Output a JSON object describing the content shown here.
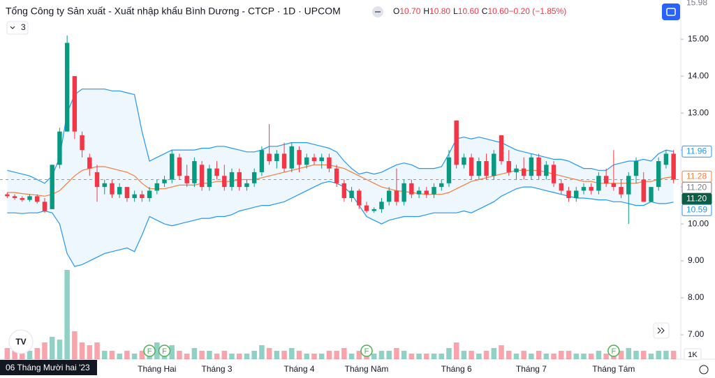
{
  "chart_data": {
    "type": "candlestick",
    "title": "Tổng Công ty Sản xuất - Xuất nhập khẩu Bình Dương - CTCP · 1D · UPCOM",
    "ohlc_legend": [
      {
        "key": "O",
        "value": "10.70"
      },
      {
        "key": "H",
        "value": "10.80"
      },
      {
        "key": "L",
        "value": "10.60"
      },
      {
        "key": "C",
        "value": "10.60"
      },
      {
        "key": "",
        "value": "−0.20 (−1.85%)"
      }
    ],
    "indicator_count": "3",
    "crosshair_date": "06 Tháng Mười hai '23",
    "crosshair_price": 11.2,
    "volume_unit": "1K",
    "up_color": "#089981",
    "down_color": "#f23645",
    "ylim": [
      6.34,
      16.06
    ],
    "yticks": [
      {
        "value": 7,
        "label": "7.00"
      },
      {
        "value": 8,
        "label": "8.00"
      },
      {
        "value": 9,
        "label": "9.00"
      },
      {
        "value": 10,
        "label": "10.00"
      },
      {
        "value": 11,
        "label": "11.00"
      },
      {
        "value": 12,
        "label": "12.00"
      },
      {
        "value": 13,
        "label": "13.00"
      },
      {
        "value": 14,
        "label": "14.00"
      },
      {
        "value": 15,
        "label": "15.00"
      }
    ],
    "price_labels": [
      {
        "value": 15.98,
        "label": "15.98",
        "color": "#787b86",
        "style": "plain"
      },
      {
        "value": 11.96,
        "label": "11.96",
        "color": "#2196f3",
        "style": "outline"
      },
      {
        "value": 11.28,
        "label": "11.28",
        "color": "#f57c3b",
        "style": "outline"
      },
      {
        "value": 11.2,
        "label": "11.20",
        "color": "#787b86",
        "style": "outline"
      },
      {
        "value": 11.2,
        "label": "11.20",
        "color": "#0b5d44",
        "style": "solid"
      },
      {
        "value": 10.59,
        "label": "10.59",
        "color": "#2196f3",
        "style": "outline"
      }
    ],
    "categories": [
      null,
      null,
      null,
      null,
      null,
      null,
      null,
      null,
      null,
      null,
      null,
      null,
      null,
      null,
      null,
      null,
      null,
      null,
      null,
      null,
      "Tháng Hai",
      null,
      null,
      null,
      null,
      null,
      null,
      null,
      "Tháng 3",
      null,
      null,
      null,
      null,
      null,
      null,
      null,
      null,
      null,
      null,
      "Tháng 4",
      null,
      null,
      null,
      null,
      null,
      null,
      null,
      null,
      "Tháng Năm",
      null,
      null,
      null,
      null,
      null,
      null,
      null,
      null,
      null,
      null,
      null,
      "Tháng 6",
      null,
      null,
      null,
      null,
      null,
      null,
      null,
      null,
      null,
      "Tháng 7",
      null,
      null,
      null,
      null,
      null,
      null,
      null,
      null,
      null,
      null,
      "Tháng Tám",
      null,
      null,
      null,
      null,
      null,
      null,
      null,
      null
    ],
    "events": [
      null,
      null,
      null,
      null,
      null,
      null,
      null,
      null,
      null,
      null,
      null,
      null,
      null,
      null,
      null,
      null,
      null,
      null,
      null,
      "F",
      null,
      "F",
      null,
      null,
      null,
      null,
      null,
      null,
      null,
      null,
      null,
      null,
      null,
      null,
      null,
      null,
      null,
      null,
      null,
      null,
      null,
      null,
      null,
      null,
      null,
      null,
      null,
      null,
      "F",
      null,
      null,
      null,
      null,
      null,
      null,
      null,
      null,
      null,
      null,
      null,
      null,
      null,
      null,
      null,
      null,
      null,
      null,
      null,
      null,
      null,
      null,
      null,
      null,
      null,
      null,
      null,
      null,
      null,
      null,
      null,
      null,
      "F",
      null,
      null,
      null,
      null,
      null,
      null,
      null,
      null
    ],
    "ohlc": [
      [
        10.8,
        10.85,
        10.7,
        10.75
      ],
      [
        10.75,
        10.8,
        10.65,
        10.7
      ],
      [
        10.7,
        10.75,
        10.6,
        10.65
      ],
      [
        10.65,
        10.8,
        10.6,
        10.75
      ],
      [
        10.75,
        10.8,
        10.55,
        10.6
      ],
      [
        10.6,
        10.7,
        10.3,
        10.35
      ],
      [
        10.4,
        11.6,
        10.4,
        11.6
      ],
      [
        11.6,
        12.6,
        11.5,
        12.5
      ],
      [
        12.5,
        15.1,
        12.5,
        14.9
      ],
      [
        14.0,
        14.0,
        12.3,
        12.5
      ],
      [
        12.4,
        12.5,
        11.8,
        12.0
      ],
      [
        11.8,
        11.9,
        11.3,
        11.5
      ],
      [
        11.4,
        11.6,
        10.6,
        11.0
      ],
      [
        11.0,
        11.2,
        10.8,
        11.1
      ],
      [
        11.1,
        11.2,
        10.7,
        10.8
      ],
      [
        10.8,
        11.1,
        10.7,
        11.0
      ],
      [
        11.0,
        11.0,
        10.6,
        10.7
      ],
      [
        10.7,
        10.9,
        10.6,
        10.8
      ],
      [
        10.8,
        10.9,
        10.6,
        10.7
      ],
      [
        10.7,
        11.0,
        10.6,
        10.9
      ],
      [
        10.9,
        11.2,
        10.8,
        11.1
      ],
      [
        11.1,
        11.3,
        11.0,
        11.2
      ],
      [
        11.2,
        12.0,
        11.1,
        11.9
      ],
      [
        11.8,
        11.9,
        11.2,
        11.3
      ],
      [
        11.3,
        11.6,
        11.0,
        11.1
      ],
      [
        11.1,
        11.8,
        11.0,
        11.7
      ],
      [
        11.6,
        11.7,
        10.9,
        11.0
      ],
      [
        11.0,
        11.6,
        10.9,
        11.5
      ],
      [
        11.5,
        11.7,
        11.2,
        11.3
      ],
      [
        11.3,
        11.6,
        10.9,
        11.0
      ],
      [
        11.0,
        11.5,
        10.9,
        11.4
      ],
      [
        11.4,
        11.5,
        10.9,
        11.0
      ],
      [
        11.0,
        11.2,
        10.9,
        11.1
      ],
      [
        11.1,
        11.5,
        11.0,
        11.4
      ],
      [
        11.4,
        12.1,
        11.3,
        12.0
      ],
      [
        11.9,
        12.7,
        11.6,
        11.7
      ],
      [
        11.7,
        12.0,
        11.5,
        11.9
      ],
      [
        11.9,
        12.2,
        11.4,
        11.5
      ],
      [
        11.5,
        12.2,
        11.4,
        12.1
      ],
      [
        12.0,
        12.1,
        11.4,
        11.6
      ],
      [
        11.6,
        11.9,
        11.5,
        11.8
      ],
      [
        11.8,
        11.9,
        11.6,
        11.7
      ],
      [
        11.7,
        11.9,
        11.5,
        11.8
      ],
      [
        11.8,
        11.9,
        11.4,
        11.5
      ],
      [
        11.5,
        11.6,
        11.0,
        11.1
      ],
      [
        11.1,
        11.2,
        10.6,
        10.7
      ],
      [
        10.7,
        11.0,
        10.6,
        10.9
      ],
      [
        10.9,
        10.95,
        10.4,
        10.5
      ],
      [
        10.5,
        10.6,
        10.3,
        10.35
      ],
      [
        10.35,
        10.45,
        10.3,
        10.4
      ],
      [
        10.4,
        10.7,
        10.3,
        10.6
      ],
      [
        10.6,
        11.0,
        10.5,
        10.9
      ],
      [
        10.9,
        11.5,
        10.5,
        10.6
      ],
      [
        10.6,
        11.2,
        10.5,
        11.1
      ],
      [
        11.1,
        11.2,
        10.7,
        10.8
      ],
      [
        10.8,
        11.0,
        10.7,
        10.9
      ],
      [
        10.9,
        11.0,
        10.7,
        10.8
      ],
      [
        10.8,
        11.1,
        10.7,
        11.0
      ],
      [
        11.0,
        11.2,
        10.9,
        11.1
      ],
      [
        11.1,
        12.0,
        11.0,
        11.8
      ],
      [
        12.8,
        12.8,
        11.5,
        11.6
      ],
      [
        11.6,
        11.9,
        11.5,
        11.8
      ],
      [
        11.8,
        11.9,
        11.2,
        11.3
      ],
      [
        11.3,
        11.8,
        11.2,
        11.7
      ],
      [
        11.7,
        11.9,
        11.2,
        11.3
      ],
      [
        11.3,
        12.0,
        11.2,
        11.9
      ],
      [
        12.4,
        12.4,
        11.6,
        11.7
      ],
      [
        11.7,
        12.0,
        11.3,
        11.4
      ],
      [
        11.4,
        11.6,
        11.2,
        11.5
      ],
      [
        11.5,
        11.8,
        11.2,
        11.3
      ],
      [
        11.3,
        11.9,
        11.2,
        11.8
      ],
      [
        11.8,
        11.9,
        11.2,
        11.3
      ],
      [
        11.3,
        11.7,
        11.2,
        11.6
      ],
      [
        11.6,
        11.7,
        11.0,
        11.1
      ],
      [
        11.1,
        11.2,
        10.8,
        10.9
      ],
      [
        10.9,
        11.0,
        10.6,
        10.7
      ],
      [
        10.7,
        11.0,
        10.6,
        10.9
      ],
      [
        10.9,
        11.1,
        10.8,
        11.0
      ],
      [
        11.0,
        11.1,
        10.8,
        10.9
      ],
      [
        10.9,
        11.4,
        10.8,
        11.3
      ],
      [
        11.3,
        11.5,
        11.0,
        11.1
      ],
      [
        11.1,
        12.0,
        10.9,
        11.0
      ],
      [
        11.0,
        11.2,
        10.7,
        10.8
      ],
      [
        10.8,
        11.4,
        10.0,
        11.3
      ],
      [
        11.3,
        11.8,
        11.1,
        11.7
      ],
      [
        11.2,
        11.4,
        10.6,
        10.6
      ],
      [
        10.6,
        11.0,
        10.6,
        11.0
      ],
      [
        11.0,
        11.8,
        10.9,
        11.7
      ],
      [
        11.6,
        12.0,
        11.5,
        11.9
      ],
      [
        11.9,
        12.0,
        11.1,
        11.2
      ]
    ],
    "volume_lim": [
      0,
      20
    ],
    "volume": [
      2,
      1.5,
      1,
      1.5,
      2,
      3,
      4,
      3.5,
      16,
      5,
      3,
      2.5,
      3,
      1.5,
      1.5,
      1,
      1.5,
      1,
      1.5,
      2,
      3,
      2,
      2.5,
      1.5,
      1,
      2,
      1.5,
      1.5,
      1,
      1.5,
      1,
      1,
      1,
      1.5,
      2.5,
      2,
      1.5,
      1.5,
      2,
      1.5,
      1,
      1,
      1,
      1.5,
      1.5,
      2,
      1,
      1.5,
      2,
      1,
      1.5,
      1.5,
      2,
      1.5,
      1,
      1,
      1,
      1,
      1,
      2,
      3,
      1.5,
      1.5,
      1,
      1.5,
      2,
      2.5,
      1.5,
      1,
      1.5,
      1,
      1.5,
      1,
      1,
      1.5,
      1.5,
      1,
      1,
      1,
      1.5,
      1,
      2.5,
      1.5,
      2,
      1.5,
      1.5,
      1,
      1.5,
      1.5,
      1.5
    ],
    "bollinger": {
      "upper_color": "#2196f3",
      "middle_color": "#f57c3b",
      "fill": "rgba(33,150,243,0.08)",
      "upper": [
        11.45,
        11.4,
        11.35,
        11.3,
        11.2,
        11.1,
        11.3,
        11.8,
        13.0,
        13.5,
        13.65,
        13.65,
        13.65,
        13.65,
        13.6,
        13.6,
        13.55,
        13.5,
        12.5,
        11.7,
        11.8,
        11.9,
        12.0,
        12.0,
        12.0,
        12.0,
        12.05,
        12.05,
        12.1,
        12.1,
        12.05,
        12.0,
        11.95,
        11.95,
        12.0,
        12.1,
        12.1,
        12.15,
        12.2,
        12.2,
        12.2,
        12.15,
        12.1,
        12.05,
        11.95,
        11.7,
        11.5,
        11.35,
        11.4,
        11.35,
        11.4,
        11.5,
        11.6,
        11.65,
        11.6,
        11.5,
        11.5,
        11.5,
        11.55,
        11.9,
        12.3,
        12.35,
        12.3,
        12.35,
        12.3,
        12.25,
        12.2,
        12.1,
        12.0,
        11.95,
        11.9,
        11.85,
        11.8,
        11.75,
        11.75,
        11.7,
        11.6,
        11.5,
        11.5,
        11.45,
        11.45,
        11.6,
        11.65,
        11.7,
        11.7,
        11.75,
        11.7,
        11.9,
        12.0,
        11.96
      ],
      "middle": [
        10.85,
        10.85,
        10.82,
        10.8,
        10.78,
        10.75,
        10.8,
        10.9,
        11.1,
        11.3,
        11.45,
        11.5,
        11.55,
        11.55,
        11.5,
        11.45,
        11.4,
        11.3,
        11.1,
        10.95,
        10.95,
        10.95,
        11.0,
        11.05,
        11.05,
        11.05,
        11.1,
        11.1,
        11.15,
        11.15,
        11.15,
        11.2,
        11.2,
        11.2,
        11.25,
        11.3,
        11.35,
        11.4,
        11.45,
        11.5,
        11.55,
        11.6,
        11.6,
        11.6,
        11.55,
        11.5,
        11.4,
        11.3,
        11.2,
        11.1,
        11.0,
        10.95,
        10.9,
        10.88,
        10.85,
        10.82,
        10.8,
        10.8,
        10.8,
        10.85,
        10.95,
        11.05,
        11.15,
        11.2,
        11.25,
        11.3,
        11.35,
        11.4,
        11.45,
        11.45,
        11.45,
        11.45,
        11.4,
        11.35,
        11.3,
        11.25,
        11.2,
        11.15,
        11.15,
        11.1,
        11.1,
        11.1,
        11.1,
        11.1,
        11.1,
        11.15,
        11.15,
        11.2,
        11.25,
        11.28
      ],
      "lower": [
        10.3,
        10.3,
        10.28,
        10.3,
        10.3,
        10.35,
        10.3,
        10.0,
        9.2,
        8.85,
        8.9,
        9.0,
        9.1,
        9.2,
        9.25,
        9.3,
        9.35,
        9.25,
        9.7,
        10.2,
        10.1,
        10.0,
        9.95,
        10.0,
        10.05,
        10.1,
        10.15,
        10.15,
        10.2,
        10.2,
        10.25,
        10.35,
        10.4,
        10.45,
        10.5,
        10.5,
        10.55,
        10.6,
        10.7,
        10.8,
        10.9,
        11.0,
        11.1,
        11.15,
        11.1,
        11.0,
        10.8,
        10.5,
        10.2,
        10.1,
        10.0,
        10.1,
        10.15,
        10.2,
        10.2,
        10.2,
        10.25,
        10.3,
        10.3,
        10.3,
        10.3,
        10.35,
        10.3,
        10.4,
        10.5,
        10.6,
        10.75,
        10.85,
        10.95,
        11.0,
        11.0,
        10.95,
        10.9,
        10.85,
        10.8,
        10.75,
        10.7,
        10.7,
        10.68,
        10.65,
        10.65,
        10.6,
        10.6,
        10.55,
        10.5,
        10.5,
        10.6,
        10.55,
        10.55,
        10.59
      ]
    }
  }
}
